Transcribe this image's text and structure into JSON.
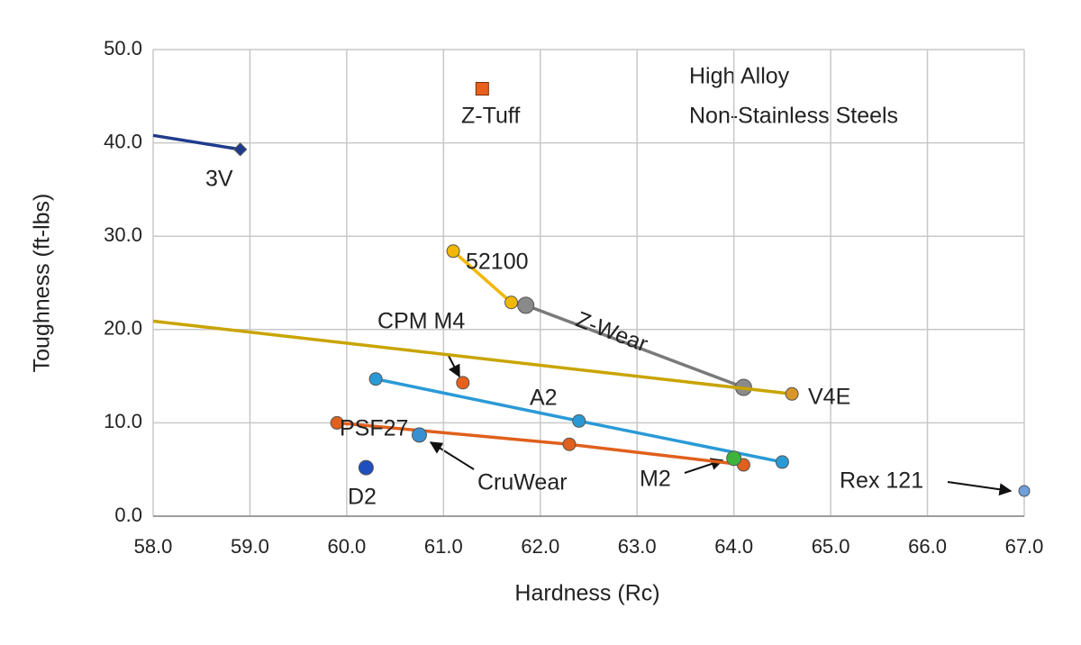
{
  "chart_data": {
    "type": "scatter",
    "x_label": "Hardness (Rc)",
    "y_label": "Toughness (ft-lbs)",
    "annotations": [
      "High Alloy",
      "Non-Stainless Steels"
    ],
    "xlim": [
      58,
      67
    ],
    "ylim": [
      0,
      50
    ],
    "grid": true,
    "xticks": [
      {
        "value": 58,
        "label": "58.0"
      },
      {
        "value": 59,
        "label": "59.0"
      },
      {
        "value": 60,
        "label": "60.0"
      },
      {
        "value": 61,
        "label": "61.0"
      },
      {
        "value": 62,
        "label": "62.0"
      },
      {
        "value": 63,
        "label": "63.0"
      },
      {
        "value": 64,
        "label": "64.0"
      },
      {
        "value": 65,
        "label": "65.0"
      },
      {
        "value": 66,
        "label": "66.0"
      },
      {
        "value": 67,
        "label": "67.0"
      }
    ],
    "yticks": [
      {
        "value": 0,
        "label": "0.0"
      },
      {
        "value": 10,
        "label": "10.0"
      },
      {
        "value": 20,
        "label": "20.0"
      },
      {
        "value": 30,
        "label": "30.0"
      },
      {
        "value": 40,
        "label": "40.0"
      },
      {
        "value": 50,
        "label": "50.0"
      }
    ],
    "series": [
      {
        "name": "3V",
        "color": "#1f3b8c",
        "marker_color": "#1f3b8c",
        "marker": "diamond",
        "x": [
          58.0,
          58.9
        ],
        "values": [
          40.8,
          39.3
        ]
      },
      {
        "name": "Z-Tuff",
        "color": "#e8601c",
        "marker_color": "#e8601c",
        "marker": "square",
        "x": [
          61.4
        ],
        "values": [
          45.8
        ]
      },
      {
        "name": "52100",
        "color": "#f2b705",
        "marker_color": "#f2b705",
        "marker": "circle",
        "x": [
          61.1,
          61.7
        ],
        "values": [
          28.4,
          22.9
        ]
      },
      {
        "name": "Z-Wear",
        "color": "#7a7a7a",
        "marker_color": "#8a8a8a",
        "marker": "circle",
        "x": [
          61.85,
          64.1
        ],
        "values": [
          22.6,
          13.8
        ]
      },
      {
        "name": "V4E",
        "color": "#c9a400",
        "marker_color": "#d9952a",
        "marker": "circle",
        "x": [
          58.0,
          64.6
        ],
        "values": [
          20.9,
          13.1
        ]
      },
      {
        "name": "CPM M4",
        "color": "#e8601c",
        "marker_color": "#e8601c",
        "marker": "circle",
        "x": [
          61.2
        ],
        "values": [
          14.3
        ]
      },
      {
        "name": "A2",
        "color": "#2a9ad6",
        "marker_color": "#2a9ad6",
        "marker": "circle",
        "x": [
          60.3,
          62.4,
          64.5
        ],
        "values": [
          14.7,
          10.2,
          5.8
        ]
      },
      {
        "name": "PSF27",
        "color": "#e0601c",
        "marker_color": "#e0601c",
        "marker": "circle",
        "x": [
          59.9,
          62.3,
          64.1
        ],
        "values": [
          10.0,
          7.7,
          5.5
        ]
      },
      {
        "name": "CruWear",
        "color": "#3a8fd0",
        "marker_color": "#3a8fd0",
        "marker": "circle",
        "x": [
          60.75
        ],
        "values": [
          8.7
        ]
      },
      {
        "name": "D2",
        "color": "#1f4fbf",
        "marker_color": "#1f4fbf",
        "marker": "circle",
        "x": [
          60.2
        ],
        "values": [
          5.2
        ]
      },
      {
        "name": "M2",
        "color": "#3cb43c",
        "marker_color": "#3cb43c",
        "marker": "circle",
        "x": [
          64.0
        ],
        "values": [
          6.2
        ]
      },
      {
        "name": "Rex 121",
        "color": "#6f9fdc",
        "marker_color": "#6f9fdc",
        "marker": "circle",
        "x": [
          67.0
        ],
        "values": [
          2.7
        ]
      }
    ]
  }
}
